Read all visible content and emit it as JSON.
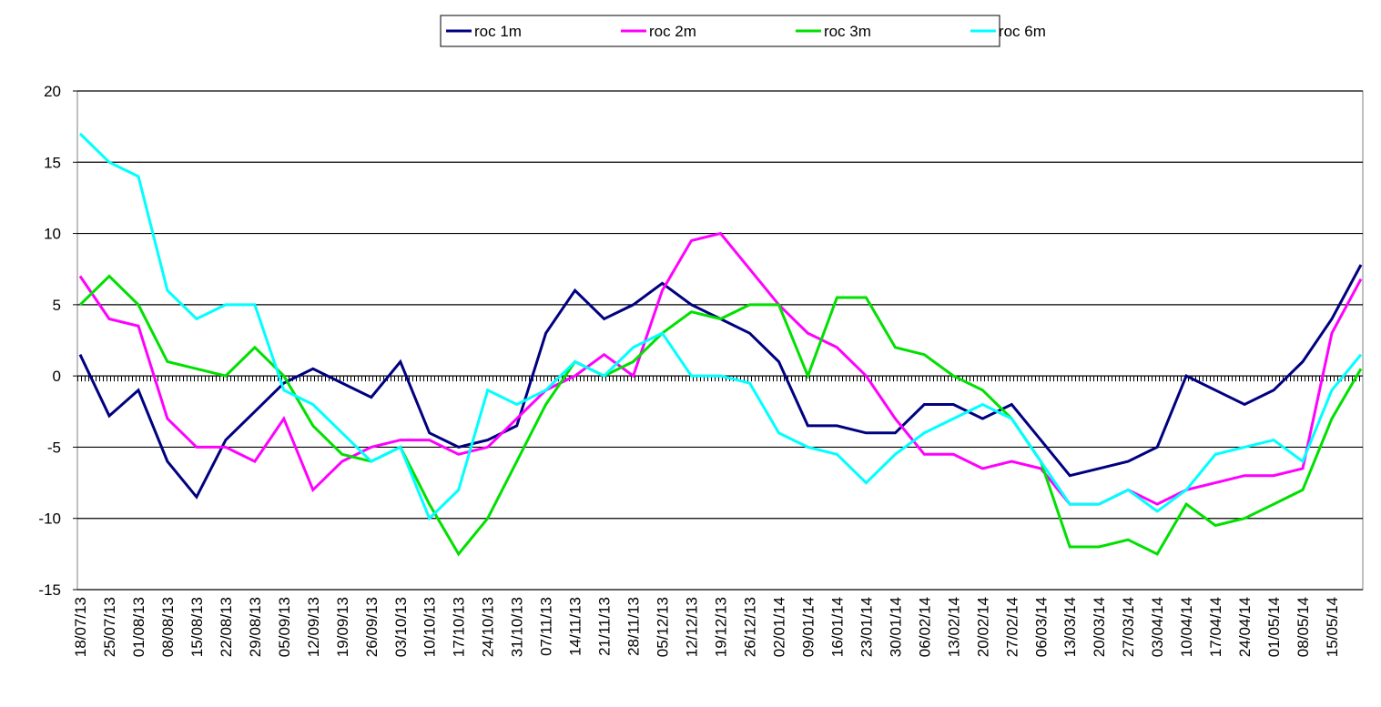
{
  "chart_data": {
    "type": "line",
    "categories": [
      "18/07/13",
      "25/07/13",
      "01/08/13",
      "08/08/13",
      "15/08/13",
      "22/08/13",
      "29/08/13",
      "05/09/13",
      "12/09/13",
      "19/09/13",
      "26/09/13",
      "03/10/13",
      "10/10/13",
      "17/10/13",
      "24/10/13",
      "31/10/13",
      "07/11/13",
      "14/11/13",
      "21/11/13",
      "28/11/13",
      "05/12/13",
      "12/12/13",
      "19/12/13",
      "26/12/13",
      "02/01/14",
      "09/01/14",
      "16/01/14",
      "23/01/14",
      "30/01/14",
      "06/02/14",
      "13/02/14",
      "20/02/14",
      "27/02/14",
      "06/03/14",
      "13/03/14",
      "20/03/14",
      "27/03/14",
      "03/04/14",
      "10/04/14",
      "17/04/14",
      "24/04/14",
      "01/05/14",
      "08/05/14",
      "15/05/14",
      null
    ],
    "series": [
      {
        "name": "roc 1m",
        "color": "#000080",
        "values": [
          1.5,
          -2.8,
          -1,
          -6,
          -8.5,
          -4.5,
          -2.5,
          -0.5,
          0.5,
          -0.5,
          -1.5,
          1,
          -4,
          -5,
          -4.5,
          -3.5,
          3,
          6,
          4,
          5,
          6.5,
          5,
          4,
          3,
          1,
          -3.5,
          -3.5,
          -4,
          -4,
          -2,
          -2,
          -3,
          -2,
          -4.5,
          -7,
          -6.5,
          -6,
          -5,
          0,
          -1,
          -2,
          -1,
          1,
          4,
          7.8
        ]
      },
      {
        "name": "roc 2m",
        "color": "#ff00ff",
        "values": [
          7,
          4,
          3.5,
          -3,
          -5,
          -5,
          -6,
          -3,
          -8,
          -6,
          -5,
          -4.5,
          -4.5,
          -5.5,
          -5,
          -3,
          -1,
          0,
          1.5,
          0,
          6,
          9.5,
          10,
          7.5,
          5,
          3,
          2,
          0,
          -3,
          -5.5,
          -5.5,
          -6.5,
          -6,
          -6.5,
          -9,
          -9,
          -8,
          -9,
          -8,
          -7.5,
          -7,
          -7,
          -6.5,
          3,
          6.8
        ]
      },
      {
        "name": "roc 3m",
        "color": "#00e000",
        "values": [
          5,
          7,
          5,
          1,
          0.5,
          0,
          2,
          0,
          -3.5,
          -5.5,
          -6,
          -5,
          -9,
          -12.5,
          -10,
          -6,
          -2,
          1,
          0,
          1,
          3,
          4.5,
          4,
          5,
          5,
          0,
          5.5,
          5.5,
          2,
          1.5,
          0,
          -1,
          -3,
          -6,
          -12,
          -12,
          -11.5,
          -12.5,
          -9,
          -10.5,
          -10,
          -9,
          -8,
          -3,
          0.5
        ]
      },
      {
        "name": "roc 6m",
        "color": "#00ffff",
        "values": [
          17,
          15,
          14,
          6,
          4,
          5,
          5,
          -1,
          -2,
          -4,
          -6,
          -5,
          -10,
          -8,
          -1,
          -2,
          -1,
          1,
          0,
          2,
          3,
          0,
          0,
          -0.5,
          -4,
          -5,
          -5.5,
          -7.5,
          -5.5,
          -4,
          -3,
          -2,
          -3,
          -6,
          -9,
          -9,
          -8,
          -9.5,
          -8,
          -5.5,
          -5,
          -4.5,
          -6,
          -1,
          1.5
        ]
      }
    ],
    "ylim": [
      -15,
      20
    ],
    "yticks": [
      -15,
      -10,
      -5,
      0,
      5,
      10,
      15,
      20
    ],
    "grid": true,
    "legend": "top"
  }
}
